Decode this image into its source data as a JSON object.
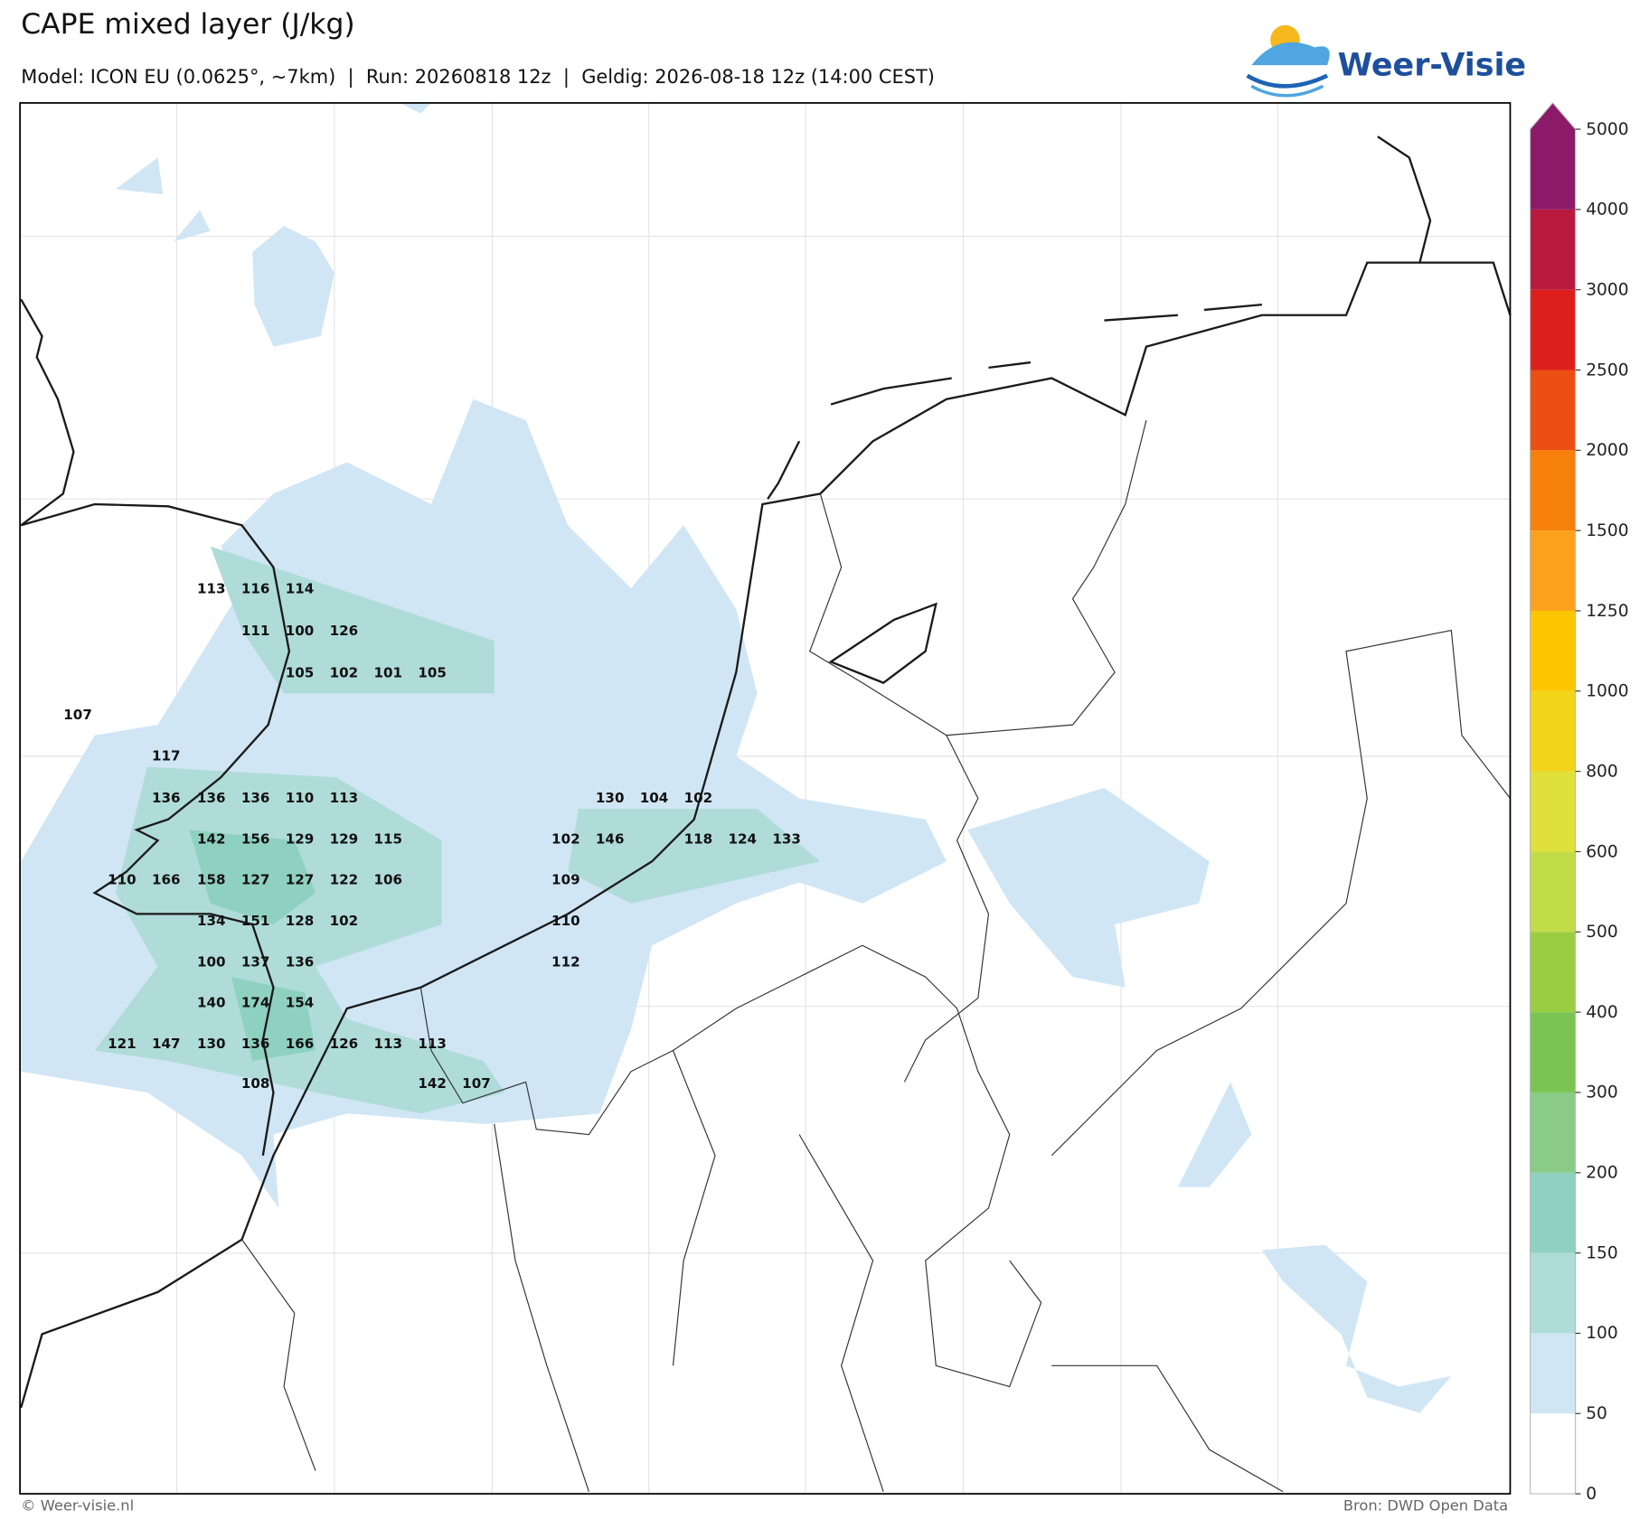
{
  "header": {
    "title": "CAPE mixed layer (J/kg)",
    "subtitle": "Model: ICON EU (0.0625°, ~7km)  |  Run: 20260818 12z  |  Geldig: 2026-08-18 12z (14:00 CEST)",
    "logo": "Weer-Visie"
  },
  "colorbar": {
    "ticks": [
      0,
      50,
      100,
      150,
      200,
      300,
      400,
      500,
      600,
      800,
      1000,
      1250,
      1500,
      2000,
      2500,
      3000,
      4000,
      5000
    ],
    "colors": [
      "#ffffff",
      "#d0e6f5",
      "#afdcd8",
      "#8fd1c0",
      "#8acb88",
      "#79c453",
      "#9acd40",
      "#c2dc48",
      "#dfe03a",
      "#f2d41a",
      "#fbc600",
      "#fba11b",
      "#f8800c",
      "#ec4e13",
      "#dd1f1c",
      "#b9193e",
      "#8b1a68"
    ]
  },
  "cape_labels": [
    113,
    116,
    114,
    111,
    100,
    126,
    105,
    102,
    101,
    105,
    107,
    117,
    136,
    136,
    136,
    110,
    113,
    130,
    104,
    102,
    142,
    156,
    129,
    129,
    115,
    102,
    146,
    118,
    124,
    133,
    110,
    166,
    158,
    127,
    127,
    122,
    106,
    109,
    134,
    151,
    128,
    102,
    110,
    100,
    137,
    136,
    112,
    140,
    174,
    154,
    121,
    147,
    130,
    136,
    166,
    126,
    113,
    113,
    108,
    142,
    107
  ],
  "footer": {
    "credit": "© Weer-visie.nl",
    "source": "Bron: DWD Open Data"
  }
}
